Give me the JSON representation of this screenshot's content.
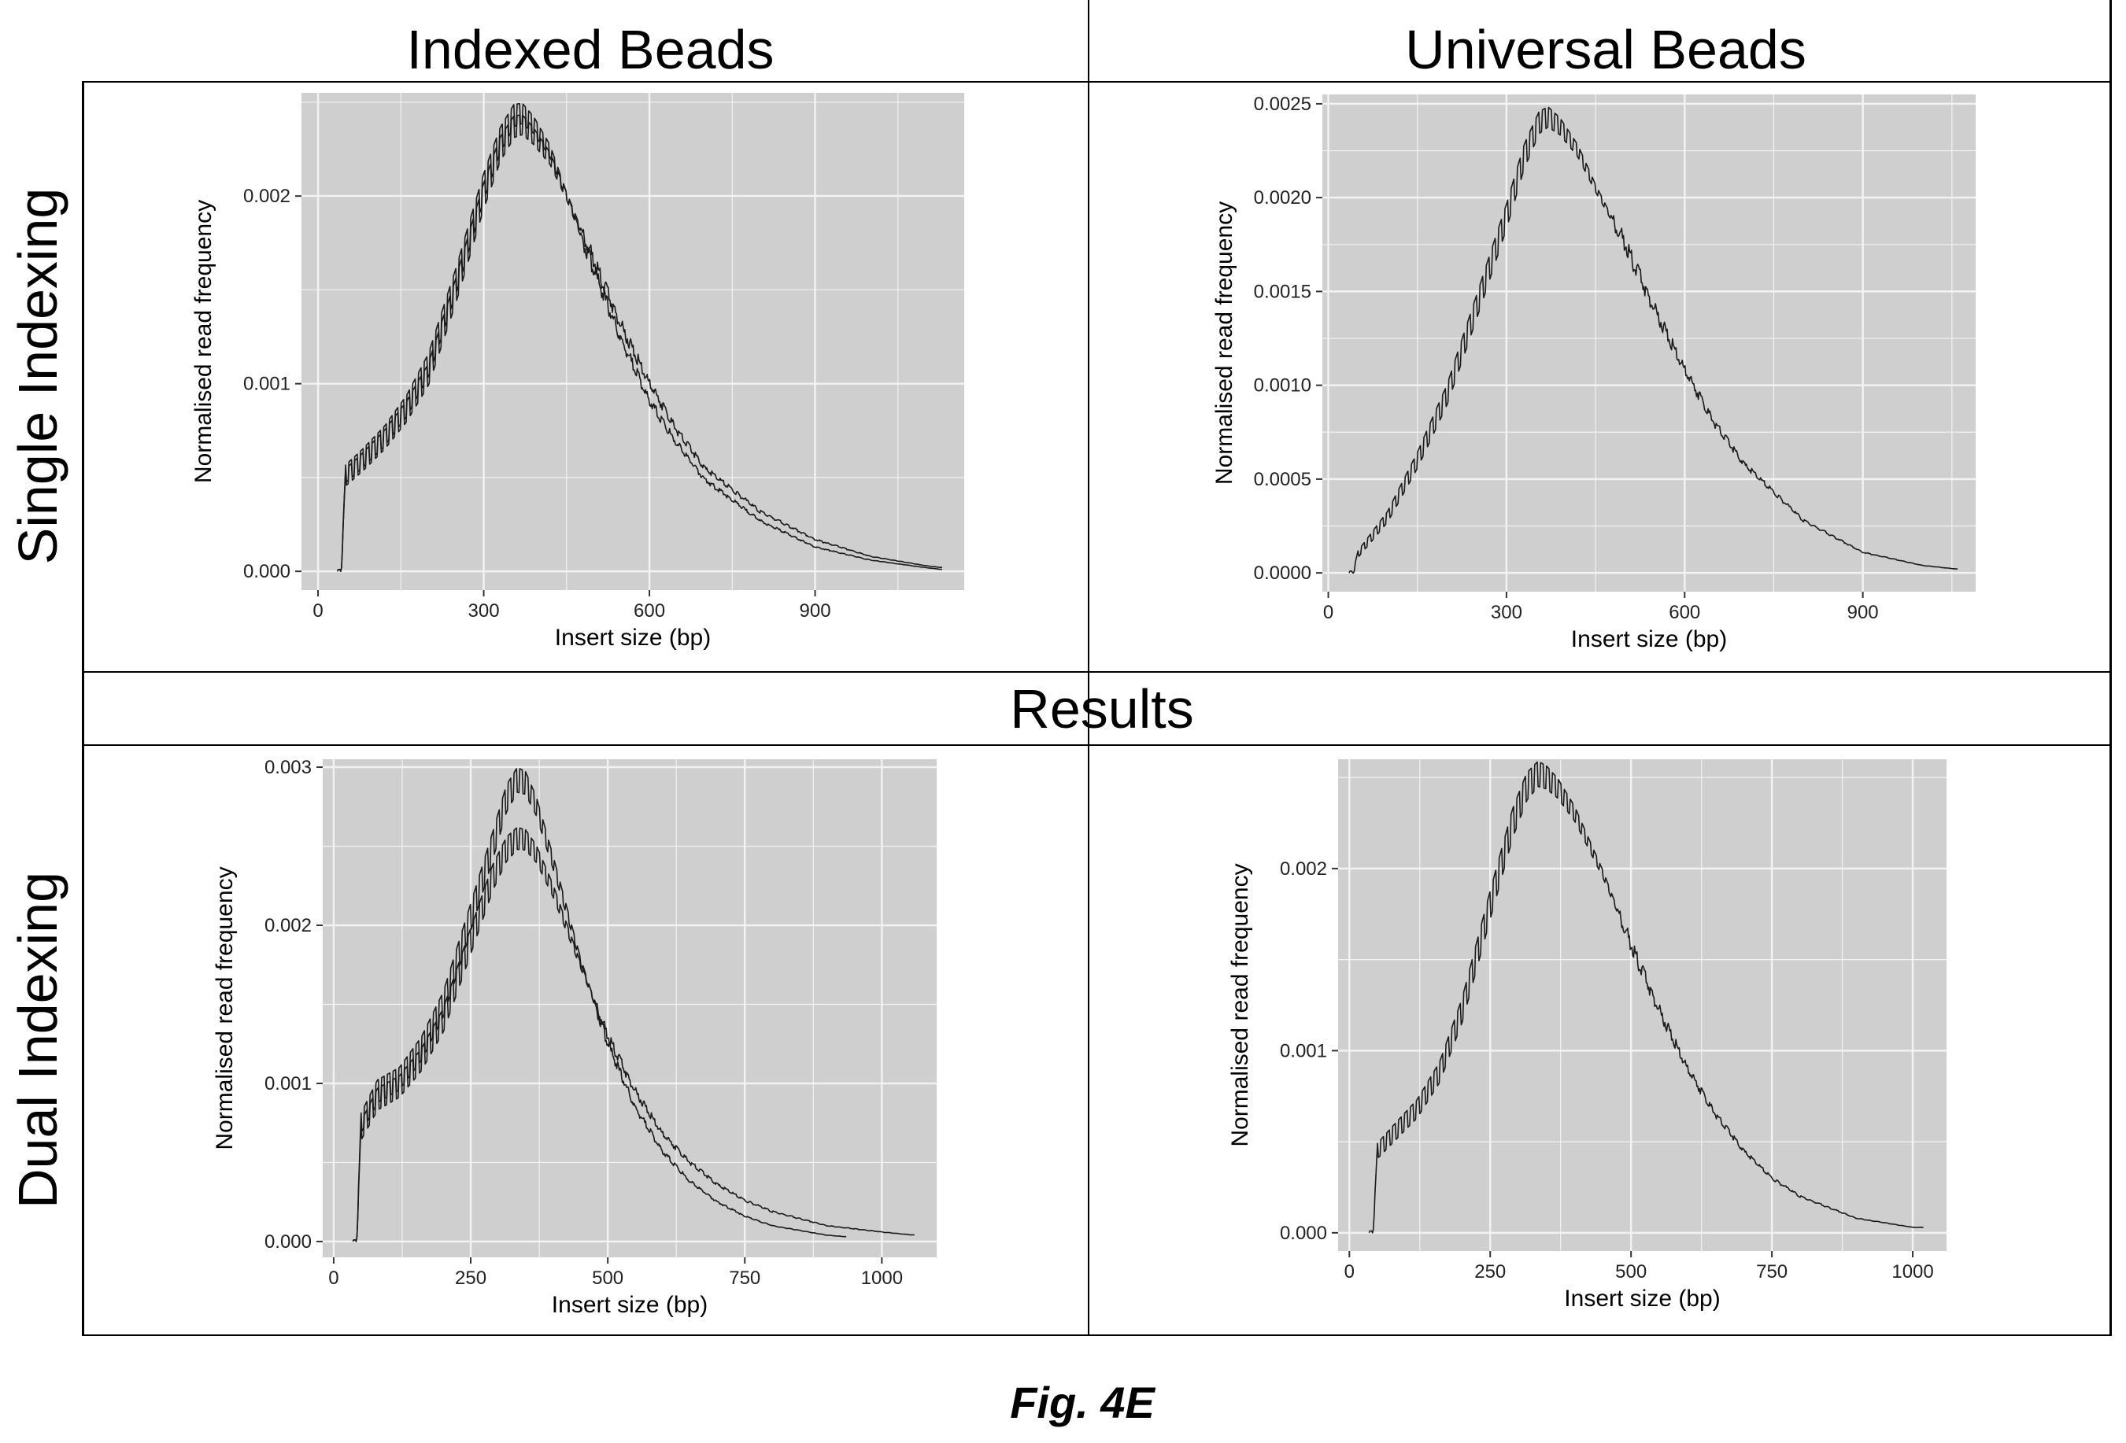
{
  "figure": {
    "column_titles": [
      "Indexed Beads",
      "Universal Beads"
    ],
    "row_titles": [
      "Single Indexing",
      "Dual Indexing"
    ],
    "middle_title": "Results",
    "caption": "Fig. 4E"
  },
  "colors": {
    "panel_background": "#cfcfcf",
    "grid": "#f2f2f2",
    "line": "#1a1a1a",
    "frame": "#000000"
  },
  "chart_data": [
    {
      "type": "line",
      "id": "single-indexed",
      "xlabel": "Insert size (bp)",
      "ylabel": "Normalised read frequency",
      "xlim": [
        -30,
        1170
      ],
      "ylim": [
        -0.0001,
        0.00255
      ],
      "xticks": [
        0,
        300,
        600,
        900
      ],
      "xtick_labels": [
        "0",
        "300",
        "600",
        "900"
      ],
      "yticks": [
        0.0,
        0.001,
        0.002
      ],
      "ytick_labels": [
        "0.000",
        "0.001",
        "0.002"
      ],
      "series": [
        {
          "x": [
            35,
            42,
            50,
            80,
            120,
            160,
            200,
            250,
            300,
            330,
            355,
            370,
            390,
            420,
            450,
            500,
            550,
            600,
            650,
            700,
            800,
            900,
            1000,
            1100,
            1130
          ],
          "y": [
            0.0,
            0.0,
            0.0005,
            0.00058,
            0.0007,
            0.00085,
            0.00105,
            0.0015,
            0.002,
            0.00225,
            0.00237,
            0.00238,
            0.00232,
            0.0022,
            0.002,
            0.00165,
            0.0013,
            0.001,
            0.00075,
            0.00055,
            0.00032,
            0.00017,
            8e-05,
            3e-05,
            2e-05
          ]
        },
        {
          "x": [
            35,
            42,
            50,
            80,
            120,
            160,
            200,
            250,
            300,
            330,
            355,
            370,
            390,
            420,
            450,
            500,
            550,
            600,
            650,
            700,
            800,
            900,
            1000,
            1100,
            1130
          ],
          "y": [
            0.0,
            0.0,
            0.00052,
            0.0006,
            0.00072,
            0.00088,
            0.0011,
            0.00155,
            0.00205,
            0.0023,
            0.00243,
            0.00244,
            0.00238,
            0.00224,
            0.002,
            0.0016,
            0.00123,
            0.00091,
            0.00068,
            0.00049,
            0.00027,
            0.00013,
            6e-05,
            2e-05,
            1e-05
          ]
        }
      ]
    },
    {
      "type": "line",
      "id": "single-universal",
      "xlabel": "Insert size (bp)",
      "ylabel": "Normalised read frequency",
      "xlim": [
        -10,
        1090
      ],
      "ylim": [
        -0.0001,
        0.00255
      ],
      "xticks": [
        0,
        300,
        600,
        900
      ],
      "xtick_labels": [
        "0",
        "300",
        "600",
        "900"
      ],
      "yticks": [
        0.0,
        0.0005,
        0.001,
        0.0015,
        0.002,
        0.0025
      ],
      "ytick_labels": [
        "0.0000",
        "0.0005",
        "0.0010",
        "0.0015",
        "0.0020",
        "0.0025"
      ],
      "series": [
        {
          "x": [
            35,
            42,
            50,
            100,
            150,
            200,
            250,
            300,
            330,
            355,
            370,
            390,
            420,
            450,
            500,
            550,
            600,
            650,
            700,
            800,
            900,
            1000,
            1060
          ],
          "y": [
            0.0,
            0.0,
            0.0001,
            0.0003,
            0.0006,
            0.00095,
            0.00142,
            0.0019,
            0.00222,
            0.0024,
            0.00243,
            0.00238,
            0.00225,
            0.00205,
            0.00175,
            0.0014,
            0.00108,
            0.0008,
            0.00058,
            0.00028,
            0.00011,
            4e-05,
            2e-05
          ]
        }
      ]
    },
    {
      "type": "line",
      "id": "dual-indexed",
      "xlabel": "Insert size (bp)",
      "ylabel": "Normalised read frequency",
      "xlim": [
        -20,
        1100
      ],
      "ylim": [
        -0.0001,
        0.00305
      ],
      "xticks": [
        0,
        250,
        500,
        750,
        1000
      ],
      "xtick_labels": [
        "0",
        "250",
        "500",
        "750",
        "1000"
      ],
      "yticks": [
        0.0,
        0.001,
        0.002,
        0.003
      ],
      "ytick_labels": [
        "0.000",
        "0.001",
        "0.002",
        "0.003"
      ],
      "series": [
        {
          "x": [
            35,
            42,
            50,
            80,
            120,
            160,
            200,
            250,
            290,
            315,
            335,
            350,
            370,
            400,
            450,
            500,
            550,
            600,
            650,
            700,
            750,
            800,
            900,
            1000,
            1060
          ],
          "y": [
            0.0,
            0.0,
            0.0007,
            0.0009,
            0.00098,
            0.00115,
            0.0014,
            0.0019,
            0.0023,
            0.00248,
            0.00255,
            0.00254,
            0.00245,
            0.00222,
            0.00175,
            0.0013,
            0.00095,
            0.00068,
            0.0005,
            0.00036,
            0.00026,
            0.00019,
            0.0001,
            6e-05,
            4e-05
          ]
        },
        {
          "x": [
            35,
            42,
            50,
            80,
            120,
            160,
            200,
            250,
            290,
            315,
            335,
            350,
            370,
            400,
            450,
            500,
            550,
            600,
            650,
            700,
            750,
            800,
            900,
            935
          ],
          "y": [
            0.0,
            0.0,
            0.00075,
            0.00095,
            0.00103,
            0.00122,
            0.0015,
            0.00205,
            0.0025,
            0.0028,
            0.00292,
            0.0029,
            0.00275,
            0.0024,
            0.00178,
            0.00125,
            0.00085,
            0.00057,
            0.00038,
            0.00025,
            0.00016,
            0.0001,
            4e-05,
            3e-05
          ]
        }
      ]
    },
    {
      "type": "line",
      "id": "dual-universal",
      "xlabel": "Insert size (bp)",
      "ylabel": "Normalised read frequency",
      "xlim": [
        -20,
        1060
      ],
      "ylim": [
        -0.0001,
        0.0026
      ],
      "xticks": [
        0,
        250,
        500,
        750,
        1000
      ],
      "xtick_labels": [
        "0",
        "250",
        "500",
        "750",
        "1000"
      ],
      "yticks": [
        0.0,
        0.001,
        0.002
      ],
      "ytick_labels": [
        "0.000",
        "0.001",
        "0.002"
      ],
      "series": [
        {
          "x": [
            35,
            42,
            50,
            80,
            120,
            160,
            200,
            250,
            290,
            315,
            335,
            350,
            370,
            400,
            450,
            500,
            550,
            600,
            650,
            700,
            750,
            800,
            900,
            1000,
            1020
          ],
          "y": [
            0.0,
            0.0,
            0.00045,
            0.00055,
            0.00068,
            0.00088,
            0.00122,
            0.0018,
            0.00225,
            0.00245,
            0.00252,
            0.0025,
            0.00244,
            0.0023,
            0.00197,
            0.00158,
            0.00122,
            0.0009,
            0.00065,
            0.00045,
            0.0003,
            0.0002,
            8e-05,
            3e-05,
            3e-05
          ]
        }
      ]
    }
  ]
}
